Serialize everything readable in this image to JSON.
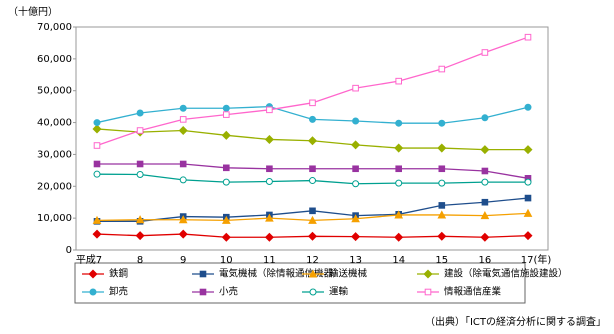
{
  "chart_data": {
    "type": "line",
    "unit_label": "（十億円）",
    "source": "（出典）「ICTの経済分析に関する調査」",
    "categories": [
      "平成7",
      "8",
      "9",
      "10",
      "11",
      "12",
      "13",
      "14",
      "15",
      "16",
      "17(年)"
    ],
    "ylim": [
      0,
      70000
    ],
    "yticks": [
      0,
      {
        "value": 10000,
        "label": "10,000"
      },
      {
        "value": 20000,
        "label": "20,000"
      },
      {
        "value": 30000,
        "label": "30,000"
      },
      {
        "value": 40000,
        "label": "40,000"
      },
      {
        "value": 50000,
        "label": "50,000"
      },
      {
        "value": 60000,
        "label": "60,000"
      },
      {
        "value": 70000,
        "label": "70,000"
      }
    ],
    "grid": false,
    "series": [
      {
        "name": "鉄鋼",
        "color": "#e00000",
        "marker": "diamond",
        "values": [
          5000,
          4500,
          5000,
          4000,
          4000,
          4300,
          4200,
          4000,
          4300,
          4000,
          4500
        ]
      },
      {
        "name": "電気機械（除情報通信機器）",
        "color": "#1f4e8c",
        "marker": "square",
        "values": [
          9000,
          9000,
          10500,
          10300,
          11000,
          12300,
          10800,
          11200,
          14000,
          15000,
          16300
        ]
      },
      {
        "name": "輸送機械",
        "color": "#f5a000",
        "marker": "triangle",
        "values": [
          9300,
          9500,
          9500,
          9300,
          10000,
          9300,
          9800,
          11000,
          11000,
          10800,
          11500
        ]
      },
      {
        "name": "建設（除電気通信施設建設）",
        "color": "#99b000",
        "marker": "diamond",
        "values": [
          38000,
          37000,
          37500,
          36000,
          34700,
          34300,
          33000,
          32000,
          32000,
          31500,
          31500
        ]
      },
      {
        "name": "卸売",
        "color": "#33b0d0",
        "marker": "circle",
        "values": [
          40000,
          43000,
          44500,
          44500,
          45000,
          41000,
          40500,
          39800,
          39800,
          41500,
          44800
        ]
      },
      {
        "name": "小売",
        "color": "#9933a0",
        "marker": "square",
        "values": [
          27000,
          27000,
          27000,
          25800,
          25500,
          25500,
          25500,
          25500,
          25500,
          24800,
          22500
        ]
      },
      {
        "name": "運輸",
        "color": "#00a090",
        "marker": "circle-open",
        "values": [
          23800,
          23700,
          22000,
          21300,
          21500,
          21800,
          20800,
          21000,
          21000,
          21300,
          21300
        ]
      },
      {
        "name": "情報通信産業",
        "color": "#ff66cc",
        "marker": "square-open",
        "values": [
          32800,
          37500,
          41000,
          42500,
          44000,
          46200,
          50800,
          53000,
          56800,
          62000,
          66800
        ]
      }
    ]
  }
}
